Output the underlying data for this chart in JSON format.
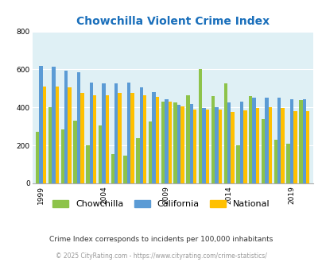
{
  "title": "Chowchilla Violent Crime Index",
  "title_color": "#1a6fbb",
  "years": [
    1999,
    2000,
    2001,
    2002,
    2003,
    2004,
    2005,
    2006,
    2007,
    2008,
    2009,
    2010,
    2011,
    2012,
    2013,
    2014,
    2015,
    2016,
    2017,
    2018,
    2019,
    2020
  ],
  "chowchilla": [
    270,
    400,
    285,
    330,
    200,
    305,
    155,
    145,
    240,
    325,
    430,
    425,
    465,
    600,
    460,
    525,
    200,
    460,
    340,
    230,
    210,
    440
  ],
  "california": [
    620,
    615,
    595,
    585,
    530,
    525,
    525,
    530,
    505,
    480,
    445,
    415,
    420,
    395,
    400,
    425,
    430,
    450,
    450,
    450,
    445,
    445
  ],
  "national": [
    510,
    510,
    505,
    475,
    465,
    465,
    475,
    475,
    465,
    455,
    430,
    405,
    390,
    388,
    390,
    375,
    385,
    395,
    400,
    395,
    380,
    380
  ],
  "bar_width": 0.28,
  "ylim": [
    0,
    800
  ],
  "yticks": [
    0,
    200,
    400,
    600,
    800
  ],
  "xtick_labels": [
    "1999",
    "2004",
    "2009",
    "2014",
    "2019"
  ],
  "xtick_positions": [
    0,
    5,
    10,
    15,
    20
  ],
  "color_chowchilla": "#8dc34a",
  "color_california": "#5b9bd5",
  "color_national": "#ffc000",
  "bg_color": "#dff0f5",
  "legend_labels": [
    "Chowchilla",
    "California",
    "National"
  ],
  "footnote": "Crime Index corresponds to incidents per 100,000 inhabitants",
  "copyright": "© 2025 CityRating.com - https://www.cityrating.com/crime-statistics/"
}
